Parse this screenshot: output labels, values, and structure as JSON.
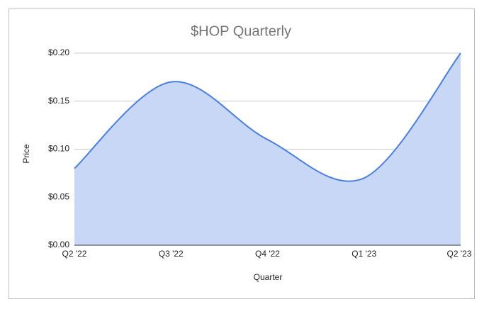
{
  "chart_data": {
    "type": "area",
    "title": "$HOP Quarterly",
    "x_label": "Quarter",
    "y_label": "Price",
    "categories": [
      "Q2 '22",
      "Q3 '22",
      "Q4 '22",
      "Q1 '23",
      "Q2 '23"
    ],
    "values": [
      0.08,
      0.17,
      0.11,
      0.07,
      0.2
    ],
    "color": "#4a7ee0",
    "fill": "#c9d7f6",
    "ylim": [
      0,
      0.2
    ],
    "yticks": [
      {
        "value": 0,
        "label": "$0.00"
      },
      {
        "value": 0.05,
        "label": "$0.05"
      },
      {
        "value": 0.1,
        "label": "$0.10"
      },
      {
        "value": 0.15,
        "label": "$0.15"
      },
      {
        "value": 0.2,
        "label": "$0.20"
      }
    ],
    "grid": true,
    "smooth": true
  }
}
